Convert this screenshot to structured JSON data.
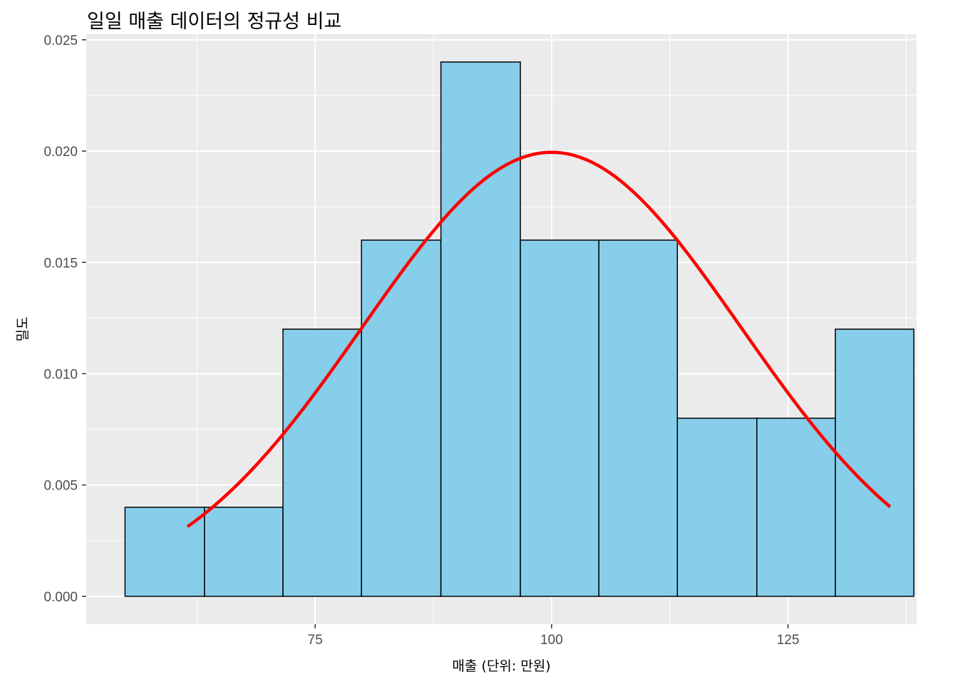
{
  "chart_data": {
    "type": "bar",
    "title": "일일 매출 데이터의 정규성 비교",
    "xlabel": "매출 (단위: 만원)",
    "ylabel": "밀도",
    "xlim": [
      50.8,
      138.6
    ],
    "ylim": [
      -0.00125,
      0.02525
    ],
    "x_ticks": [
      75,
      100,
      125
    ],
    "x_tick_labels": [
      "75",
      "100",
      "125"
    ],
    "x_minor_ticks": [
      62.5,
      87.5,
      112.5,
      137.5
    ],
    "y_ticks": [
      0,
      0.005,
      0.01,
      0.015,
      0.02,
      0.025
    ],
    "y_tick_labels": [
      "0.000",
      "0.005",
      "0.010",
      "0.015",
      "0.020",
      "0.025"
    ],
    "grid": true,
    "histogram": {
      "bin_edges": [
        54.9,
        63.3,
        71.6,
        79.9,
        88.3,
        96.7,
        105.0,
        113.3,
        121.7,
        130.0,
        138.3
      ],
      "density": [
        0.004,
        0.004,
        0.012,
        0.016,
        0.024,
        0.016,
        0.016,
        0.008,
        0.008,
        0.012
      ],
      "fill": "#87CEEB",
      "edge_color": "#000000"
    },
    "normal_curve": {
      "mean": 100,
      "sd": 20,
      "x_range": [
        61.5,
        135.8
      ],
      "color": "#FF0000"
    },
    "panel_background": "#EBEBEB",
    "grid_color": "#FFFFFF"
  }
}
